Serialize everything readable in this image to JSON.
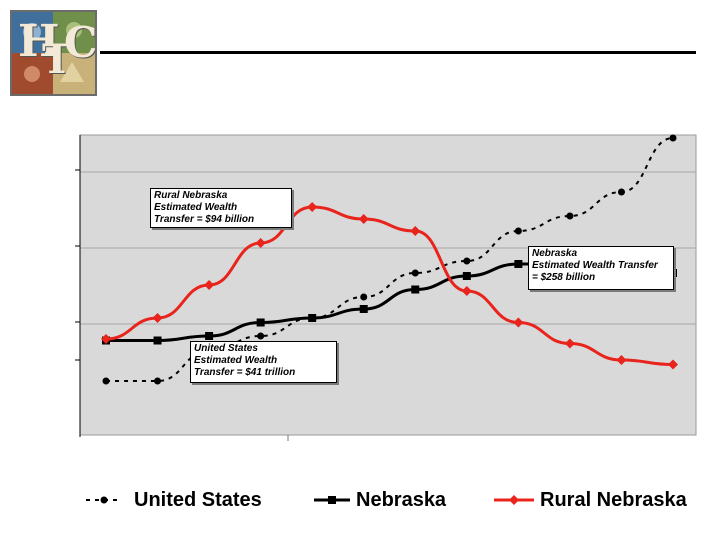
{
  "logo": {
    "letters": [
      "H",
      "T",
      "C"
    ]
  },
  "chart_data": {
    "type": "line",
    "x": [
      1,
      2,
      3,
      4,
      5,
      6,
      7,
      8,
      9,
      10,
      11,
      12
    ],
    "ylim": [
      0,
      10
    ],
    "grid": true,
    "series": [
      {
        "name": "United States",
        "color": "#000000",
        "style": "dashed-circle",
        "values": [
          1.8,
          1.8,
          2.8,
          3.3,
          3.9,
          4.6,
          5.4,
          5.8,
          6.8,
          7.3,
          8.1,
          9.9
        ]
      },
      {
        "name": "Nebraska",
        "color": "#000000",
        "style": "solid-square",
        "values": [
          3.15,
          3.15,
          3.3,
          3.75,
          3.9,
          4.2,
          4.85,
          5.3,
          5.7,
          5.7,
          5.6,
          5.4
        ]
      },
      {
        "name": "Rural Nebraska",
        "color": "#e8241c",
        "style": "solid-diamond",
        "values": [
          3.2,
          3.9,
          5.0,
          6.4,
          7.6,
          7.2,
          6.8,
          4.8,
          3.75,
          3.05,
          2.5,
          2.35
        ]
      }
    ],
    "annotations": [
      {
        "id": "rural",
        "lines": [
          "Rural Nebraska",
          "Estimated Wealth",
          "Transfer = $94 billion"
        ]
      },
      {
        "id": "nebraska",
        "lines": [
          "Nebraska",
          "Estimated Wealth Transfer",
          "= $258 billion"
        ]
      },
      {
        "id": "us",
        "lines": [
          "United States",
          "Estimated Wealth",
          "Transfer = $41 trillion"
        ]
      }
    ]
  },
  "legend": {
    "us_label": "United States",
    "nebraska_label": "Nebraska",
    "rural_label": "Rural Nebraska"
  }
}
